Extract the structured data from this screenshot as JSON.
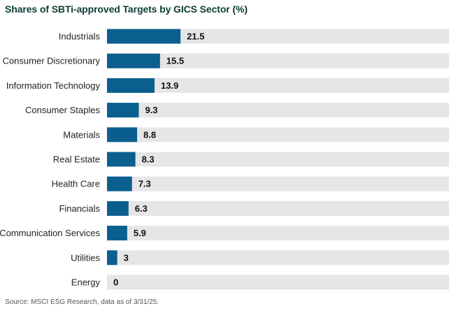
{
  "chart_data": {
    "type": "bar",
    "orientation": "horizontal",
    "title": "Shares of SBTi-approved Targets by GICS Sector (%)",
    "categories": [
      "Industrials",
      "Consumer Discretionary",
      "Information Technology",
      "Consumer Staples",
      "Materials",
      "Real Estate",
      "Health Care",
      "Financials",
      "Communication Services",
      "Utilities",
      "Energy"
    ],
    "values": [
      21.5,
      15.5,
      13.9,
      9.3,
      8.8,
      8.3,
      7.3,
      6.3,
      5.9,
      3,
      0
    ],
    "value_labels": [
      "21.5",
      "15.5",
      "13.9",
      "9.3",
      "8.8",
      "8.3",
      "7.3",
      "6.3",
      "5.9",
      "3",
      "0"
    ],
    "xlim": [
      0,
      100
    ],
    "xlabel": "",
    "ylabel": "",
    "bar_color": "#0b5f8f",
    "track_color": "#e6e6e6",
    "source": "Source: MSCI ESG Research, data as of 3/31/25."
  }
}
